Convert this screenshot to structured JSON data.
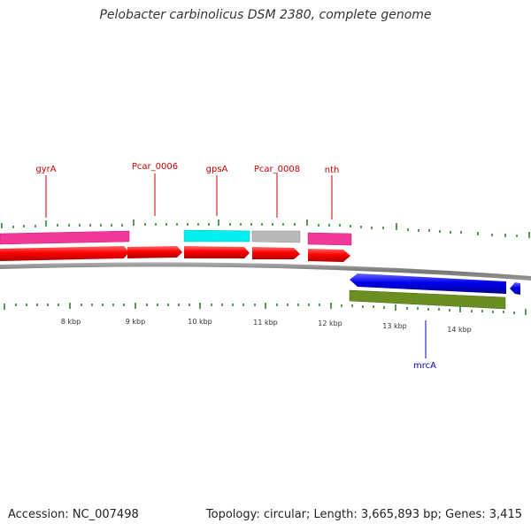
{
  "title": "Pelobacter carbinolicus DSM 2380, complete genome",
  "accession": "Accession: NC_007498",
  "topology": "Topology: circular; Length: 3,665,893 bp; Genes: 3,415",
  "gene_labels": [
    {
      "name": "gyrA",
      "strand": "forward"
    },
    {
      "name": "Pcar_0006",
      "strand": "forward"
    },
    {
      "name": "gpsA",
      "strand": "forward"
    },
    {
      "name": "Pcar_0008",
      "strand": "forward"
    },
    {
      "name": "nth",
      "strand": "forward"
    },
    {
      "name": "mrcA",
      "strand": "reverse"
    }
  ],
  "tick_labels": [
    "8 kbp",
    "9 kbp",
    "10 kbp",
    "11 kbp",
    "12 kbp",
    "13 kbp",
    "14 kbp"
  ],
  "colors": {
    "forward_cds": "#ff0000",
    "reverse_cds": "#0000ee",
    "cog_magenta": "#f0389a",
    "cog_cyan": "#00f0f0",
    "cog_gray": "#b8b8b8",
    "cog_olive": "#6b8e23",
    "tick": "#1e7a1e",
    "backbone": "#888888"
  }
}
